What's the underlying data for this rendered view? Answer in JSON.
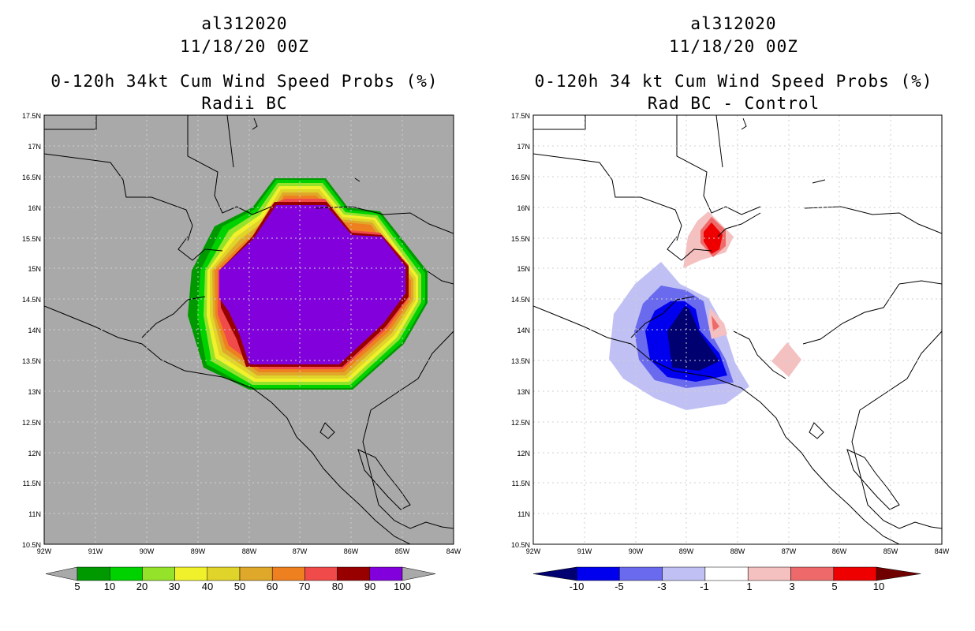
{
  "left": {
    "storm_id": "al312020",
    "datetime": "11/18/20 00Z",
    "title": "0-120h 34kt Cum Wind Speed Probs (%)",
    "subtitle": "Radii BC",
    "background": "#a9a9a9",
    "lat_ticks": [
      "17.5N",
      "17N",
      "16.5N",
      "16N",
      "15.5N",
      "15N",
      "14.5N",
      "14N",
      "13.5N",
      "13N",
      "12.5N",
      "12N",
      "11.5N",
      "11N",
      "10.5N"
    ],
    "lon_ticks": [
      "92W",
      "91W",
      "90W",
      "89W",
      "88W",
      "87W",
      "86W",
      "85W",
      "84W"
    ],
    "colorbar": {
      "colors": [
        "#009a00",
        "#00d200",
        "#95e22a",
        "#f1f12b",
        "#e0d32a",
        "#e0a82a",
        "#ee8020",
        "#f04a4a",
        "#980000",
        "#8200dc"
      ],
      "labels": [
        "5",
        "10",
        "20",
        "30",
        "40",
        "50",
        "60",
        "70",
        "80",
        "90",
        "100"
      ]
    }
  },
  "right": {
    "storm_id": "al312020",
    "datetime": "11/18/20 00Z",
    "title": "0-120h 34 kt Cum Wind Speed Probs (%)",
    "subtitle": "Rad BC - Control",
    "background": "#ffffff",
    "lat_ticks": [
      "17.5N",
      "17N",
      "16.5N",
      "16N",
      "15.5N",
      "15N",
      "14.5N",
      "14N",
      "13.5N",
      "13N",
      "12.5N",
      "12N",
      "11.5N",
      "11N",
      "10.5N"
    ],
    "lon_ticks": [
      "92W",
      "91W",
      "90W",
      "89W",
      "88W",
      "87W",
      "86W",
      "85W",
      "84W"
    ],
    "colorbar": {
      "colors": [
        "#000070",
        "#0000ee",
        "#6a6aee",
        "#c0c0f5",
        "#ffffff",
        "#f5c0c0",
        "#ee6a6a",
        "#ee0000",
        "#700000"
      ],
      "labels": [
        "-10",
        "-5",
        "-3",
        "-1",
        "1",
        "3",
        "5",
        "10"
      ]
    }
  }
}
